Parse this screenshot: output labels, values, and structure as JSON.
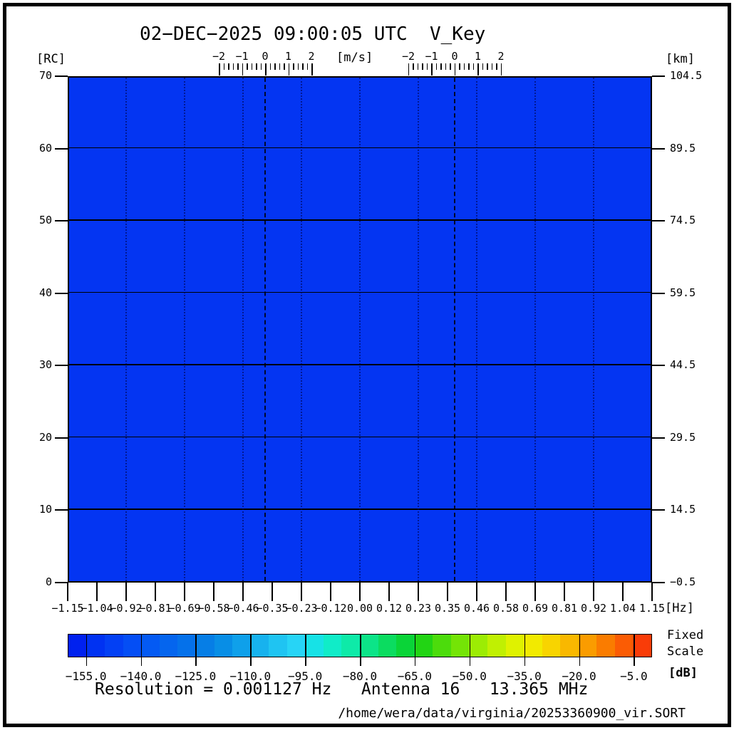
{
  "title": "02−DEC−2025 09:00:05 UTC  V_Key",
  "header": {
    "left_unit": "[RC]",
    "mid_unit": "[m/s]",
    "right_unit": "[km]",
    "velocity_ticks": [
      "−2",
      "−1",
      "0",
      "1",
      "2"
    ]
  },
  "axes": {
    "left": {
      "ticks": [
        "70",
        "60",
        "50",
        "40",
        "30",
        "20",
        "10",
        "0"
      ]
    },
    "right": {
      "ticks": [
        "104.5",
        "89.5",
        "74.5",
        "59.5",
        "44.5",
        "29.5",
        "14.5",
        "−0.5"
      ]
    },
    "bottom": {
      "ticks": [
        "−1.15",
        "−1.04",
        "−0.92",
        "−0.81",
        "−0.69",
        "−0.58",
        "−0.46",
        "−0.35",
        "−0.23",
        "−0.12",
        "0.00",
        "0.12",
        "0.23",
        "0.35",
        "0.46",
        "0.58",
        "0.69",
        "0.81",
        "0.92",
        "1.04",
        "1.15"
      ],
      "unit": "[Hz]"
    }
  },
  "plot": {
    "fill_color": "#0435f2",
    "grid_color": "#000000"
  },
  "colorbar": {
    "segments": [
      "#0021ef",
      "#0032f2",
      "#0340f4",
      "#044ef5",
      "#045af3",
      "#0565ee",
      "#0571ea",
      "#067ee6",
      "#088ee6",
      "#0fa0ea",
      "#17b2ee",
      "#1fc4f2",
      "#27d4f6",
      "#17e2e6",
      "#10ecc8",
      "#0eeaa8",
      "#0ce488",
      "#0bdc60",
      "#0ad438",
      "#22d414",
      "#4cdc0c",
      "#74e406",
      "#9cec04",
      "#c0f002",
      "#dff200",
      "#f2ea00",
      "#f8d400",
      "#f9b800",
      "#fa9c00",
      "#fa7c00",
      "#fb5c04",
      "#f93c08"
    ],
    "tick_labels": [
      "−155.0",
      "−140.0",
      "−125.0",
      "−110.0",
      "−95.0",
      "−80.0",
      "−65.0",
      "−50.0",
      "−35.0",
      "−20.0",
      "−5.0"
    ],
    "range_db": [
      -160,
      0
    ],
    "unit": "[dB]",
    "scale_line1": "Fixed",
    "scale_line2": "Scale"
  },
  "footer": {
    "info": "Resolution = 0.001127 Hz   Antenna 16   13.365 MHz",
    "file_path": "/home/wera/data/virginia/20253360900_vir.SORT"
  },
  "chart_data": {
    "type": "heatmap",
    "title": "02-DEC-2025 09:00:05 UTC  V_Key",
    "xlabel": "[Hz]",
    "ylabel_left": "[RC]",
    "ylabel_right": "[km]",
    "xlim": [
      -1.15,
      1.15
    ],
    "ylim_rc": [
      0,
      70
    ],
    "ylim_km": [
      -0.5,
      104.5
    ],
    "x_tick_step_hz": 0.115,
    "y_tick_step_rc": 10,
    "value_unit": "[dB]",
    "value_range": [
      -160,
      0
    ],
    "scale_mode": "Fixed Scale",
    "uniform_value_db": -155,
    "description": "Entire spectrum field is a single uniform low-power blue level (~-155 dB); no echo structure visible",
    "bragg_lines_hz": [
      -0.373,
      0.373
    ],
    "velocity_overlay": {
      "unit": "[m/s]",
      "range": [
        -2,
        2
      ],
      "tick_step": 1,
      "minor_step": 0.2
    },
    "grid": {
      "horizontal_solid_rc": [
        10,
        20,
        30,
        40,
        50,
        60
      ],
      "vertical_dotted_hz": [
        -0.92,
        -0.69,
        -0.46,
        -0.23,
        0.0,
        0.23,
        0.46,
        0.69,
        0.92
      ]
    },
    "annotations": [
      "Resolution = 0.001127 Hz",
      "Antenna 16",
      "13.365 MHz",
      "/home/wera/data/virginia/20253360900_vir.SORT"
    ]
  }
}
